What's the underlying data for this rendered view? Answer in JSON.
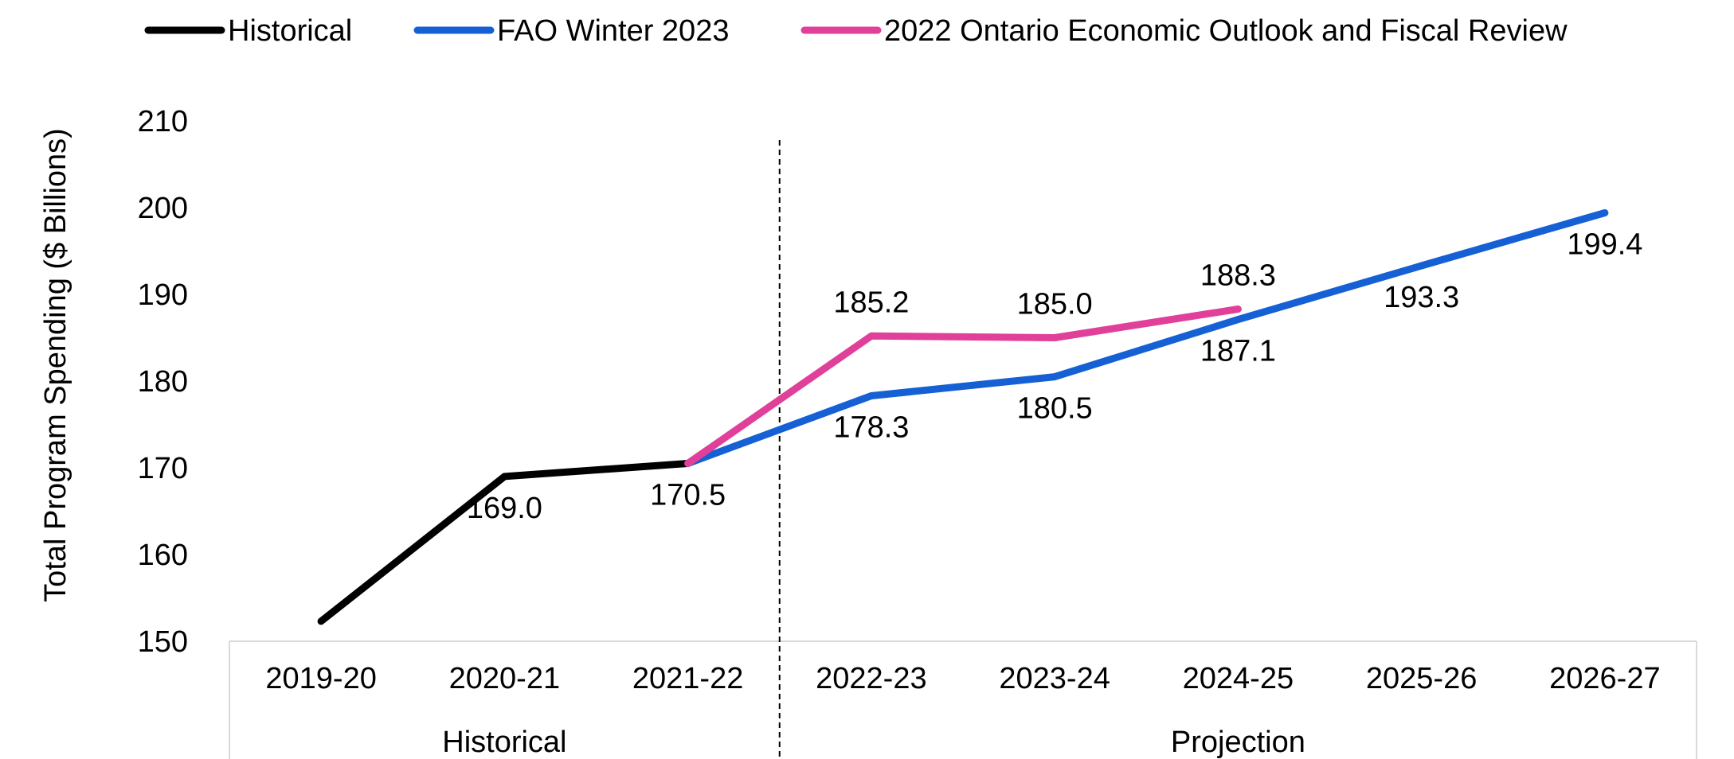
{
  "chart_data": {
    "type": "line",
    "title": "",
    "xlabel": "",
    "ylabel": "Total Program Spending ($ Billions)",
    "ylim": [
      150,
      210
    ],
    "y_ticks": [
      "150",
      "160",
      "170",
      "180",
      "190",
      "200",
      "210"
    ],
    "grid": false,
    "legend_position": "top",
    "categories": [
      "2019-20",
      "2020-21",
      "2021-22",
      "2022-23",
      "2023-24",
      "2024-25",
      "2025-26",
      "2026-27"
    ],
    "category_groups": [
      {
        "label": "Historical",
        "start": 0,
        "end": 2
      },
      {
        "label": "Projection",
        "start": 3,
        "end": 7
      }
    ],
    "series": [
      {
        "name": "Historical",
        "color": "#000000",
        "values": [
          152.3,
          169.0,
          170.5,
          null,
          null,
          null,
          null,
          null
        ],
        "labels": [
          null,
          "169.0",
          "170.5",
          null,
          null,
          null,
          null,
          null
        ],
        "label_position": "below"
      },
      {
        "name": "FAO Winter 2023",
        "color": "#1560d4",
        "values": [
          null,
          null,
          170.5,
          178.3,
          180.5,
          187.1,
          193.3,
          199.4
        ],
        "labels": [
          null,
          null,
          null,
          "178.3",
          "180.5",
          "187.1",
          "193.3",
          "199.4"
        ],
        "label_position": "below"
      },
      {
        "name": "2022 Ontario Economic Outlook and Fiscal Review",
        "color": "#e0409a",
        "values": [
          null,
          null,
          170.5,
          185.2,
          185.0,
          188.3,
          null,
          null
        ],
        "labels": [
          null,
          null,
          null,
          "185.2",
          "185.0",
          "188.3",
          null,
          null
        ],
        "label_position": "above"
      }
    ]
  }
}
